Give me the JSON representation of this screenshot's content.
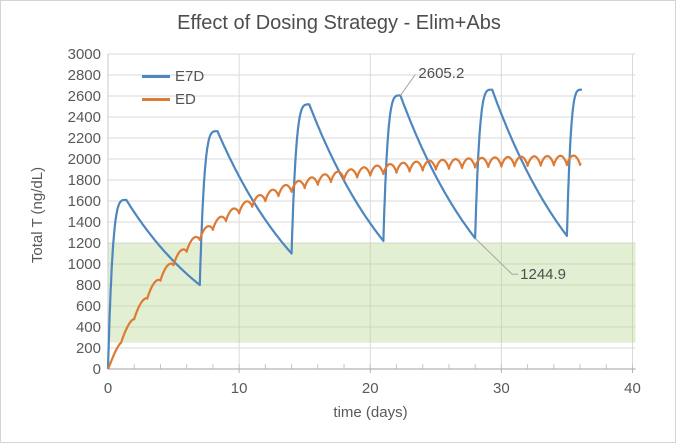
{
  "chart_data": {
    "type": "line",
    "title": "Effect of Dosing Strategy - Elim+Abs",
    "xlabel": "time (days)",
    "ylabel": "Total T (ng/dL)",
    "xlim": [
      0,
      40
    ],
    "ylim": [
      0,
      3000
    ],
    "x_ticks": [
      0,
      10,
      20,
      30,
      40
    ],
    "x_minor_tick_interval": 2,
    "y_ticks": [
      0,
      200,
      400,
      600,
      800,
      1000,
      1200,
      1400,
      1600,
      1800,
      2000,
      2200,
      2400,
      2600,
      2800,
      3000
    ],
    "grid": true,
    "legend_position": "inside-top-left",
    "normal_range_band": {
      "low": 250,
      "high": 1200,
      "fill": "#b5d489",
      "opacity": 0.38
    },
    "series": [
      {
        "name": "E7D",
        "color": "#4e86c0",
        "description": "dose every 7 days - sawtooth rise and decay",
        "rise_power": 4,
        "cycles": [
          {
            "t0": 0,
            "v0": 0,
            "tp": 1.4,
            "vp": 1610,
            "t1": 7,
            "v1": 800
          },
          {
            "t0": 7,
            "v0": 800,
            "tp": 8.35,
            "vp": 2265,
            "t1": 14,
            "v1": 1100
          },
          {
            "t0": 14,
            "v0": 1100,
            "tp": 15.35,
            "vp": 2520,
            "t1": 21,
            "v1": 1220
          },
          {
            "t0": 21,
            "v0": 1220,
            "tp": 22.3,
            "vp": 2605.2,
            "t1": 28,
            "v1": 1244.9
          },
          {
            "t0": 28,
            "v0": 1244.9,
            "tp": 29.3,
            "vp": 2660,
            "t1": 35,
            "v1": 1268
          },
          {
            "t0": 35,
            "v0": 1268,
            "tp": 36.15,
            "vp": 2660,
            "t1": 36.15,
            "v1": 2660
          }
        ],
        "peaks": [
          {
            "day": 1.4,
            "value": 1610
          },
          {
            "day": 8.35,
            "value": 2265
          },
          {
            "day": 15.35,
            "value": 2520
          },
          {
            "day": 22.3,
            "value": 2605.2
          },
          {
            "day": 29.3,
            "value": 2660
          },
          {
            "day": 36.15,
            "value": 2660
          }
        ],
        "troughs": [
          {
            "day": 7,
            "value": 800
          },
          {
            "day": 14,
            "value": 1100
          },
          {
            "day": 21,
            "value": 1220
          },
          {
            "day": 28,
            "value": 1244.9
          },
          {
            "day": 35,
            "value": 1268
          }
        ]
      },
      {
        "name": "ED",
        "color": "#dd7a33",
        "description": "daily dosing - rippled saturation curve",
        "model": {
          "plateau": 2000,
          "tau_days": 7,
          "ripple_peak_to_trough": 90,
          "t_end": 36.05
        },
        "keypoints": [
          {
            "day": 0,
            "value": 0
          },
          {
            "day": 7,
            "value": 1265
          },
          {
            "day": 14,
            "value": 1730
          },
          {
            "day": 21,
            "value": 1900
          },
          {
            "day": 28,
            "value": 1955
          },
          {
            "day": 35,
            "value": 1985
          }
        ]
      }
    ],
    "annotations": [
      {
        "label": "2605.2",
        "day": 22.3,
        "value": 2605.2
      },
      {
        "label": "1244.9",
        "day": 28.0,
        "value": 1244.9
      }
    ],
    "colors": {
      "gridline": "#dadada",
      "y_axis_line": "#c9c9c9",
      "x_axis_line": "#b3b3b3",
      "tick_text": "#595959",
      "leader_line": "#a6a6a6"
    }
  }
}
